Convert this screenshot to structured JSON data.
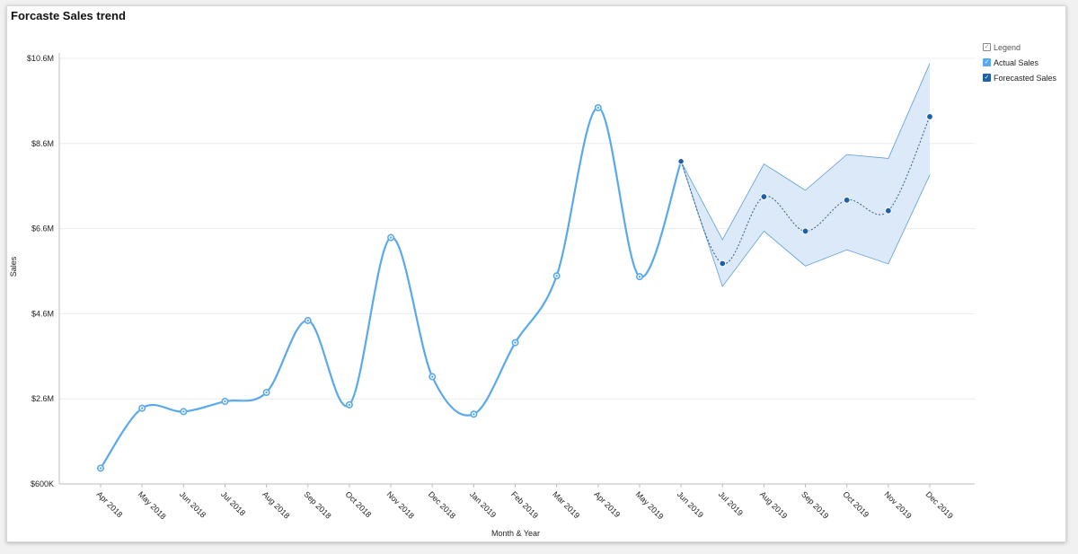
{
  "title": "Forcaste Sales trend",
  "chart_data": {
    "type": "line",
    "title": "Forcaste Sales trend",
    "xlabel": "Month & Year",
    "ylabel": "Sales",
    "ylim": [
      600000,
      10600000
    ],
    "yticks": [
      600000,
      2600000,
      4600000,
      6600000,
      8600000,
      10600000
    ],
    "ytick_labels": [
      "$600K",
      "$2.6M",
      "$4.6M",
      "$6.6M",
      "$8.6M",
      "$10.6M"
    ],
    "categories": [
      "Apr 2018",
      "May 2018",
      "Jun 2018",
      "Jul 2018",
      "Aug 2018",
      "Sep 2018",
      "Oct 2018",
      "Nov 2018",
      "Dec 2018",
      "Jan 2019",
      "Feb 2019",
      "Mar 2019",
      "Apr 2019",
      "May 2019",
      "Jun 2019",
      "Jul 2019",
      "Aug 2019",
      "Sep 2019",
      "Oct 2019",
      "Nov 2019",
      "Dec 2019"
    ],
    "grid": true,
    "legend_position": "top-right",
    "series": [
      {
        "name": "Actual Sales",
        "color": "#5aa9ec",
        "values": [
          970000,
          2380000,
          2300000,
          2540000,
          2750000,
          4440000,
          2460000,
          6390000,
          3120000,
          2240000,
          3920000,
          5490000,
          9440000,
          5470000,
          8180000,
          null,
          null,
          null,
          null,
          null,
          null
        ]
      },
      {
        "name": "Forecasted Sales",
        "color": "#1f5fa8",
        "values": [
          null,
          null,
          null,
          null,
          null,
          null,
          null,
          null,
          null,
          null,
          null,
          null,
          null,
          null,
          8180000,
          5780000,
          7350000,
          6540000,
          7270000,
          7020000,
          9230000
        ],
        "lower": [
          null,
          null,
          null,
          null,
          null,
          null,
          null,
          null,
          null,
          null,
          null,
          null,
          null,
          null,
          8180000,
          5240000,
          6540000,
          5720000,
          6100000,
          5770000,
          7860000
        ],
        "upper": [
          null,
          null,
          null,
          null,
          null,
          null,
          null,
          null,
          null,
          null,
          null,
          null,
          null,
          null,
          8180000,
          6340000,
          8120000,
          7500000,
          8340000,
          8250000,
          10480000
        ]
      }
    ]
  },
  "legend": {
    "header": "Legend",
    "items": [
      {
        "label": "Actual Sales",
        "color": "#5aa9ec"
      },
      {
        "label": "Forecasted Sales",
        "color": "#1f5fa8"
      }
    ]
  },
  "colors": {
    "band_fill": "#dce9f9",
    "band_stroke": "#5b9bd8",
    "grid": "#ececec",
    "axis": "#bdbdbd"
  }
}
